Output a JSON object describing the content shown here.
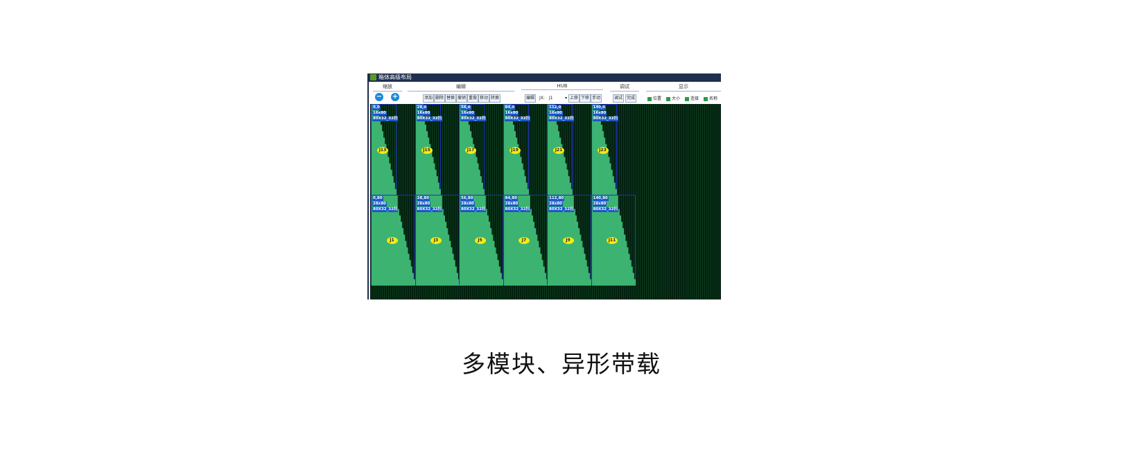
{
  "window": {
    "title": "箱体高级布局"
  },
  "toolbar": {
    "sections": [
      "缩放",
      "编辑",
      "HUB",
      "调试",
      "显示"
    ],
    "edit_buttons": [
      "添加",
      "删除",
      "替换",
      "撤销",
      "重做",
      "移动",
      "转换"
    ],
    "hub": {
      "edit": "编辑",
      "jx_label": "JX:",
      "jx_value": "J1",
      "up": "上移",
      "down": "下移",
      "manual": "手动"
    },
    "debug_buttons": [
      "调试",
      "完成"
    ],
    "display_checks": [
      {
        "label": "位置",
        "checked": true
      },
      {
        "label": "大小",
        "checked": true
      },
      {
        "label": "连接",
        "checked": true
      },
      {
        "label": "名称",
        "checked": true
      }
    ]
  },
  "modules": {
    "top": [
      {
        "pos": "0,0",
        "size": "16x80",
        "type": "80X32_32扫",
        "id": "J13"
      },
      {
        "pos": "28,0",
        "size": "16x80",
        "type": "80X32_32扫",
        "id": "J15"
      },
      {
        "pos": "56,0",
        "size": "16x80",
        "type": "80X32_32扫",
        "id": "J17"
      },
      {
        "pos": "84,0",
        "size": "16x80",
        "type": "80X32_32扫",
        "id": "J19"
      },
      {
        "pos": "112,0",
        "size": "16x80",
        "type": "80X32_32扫",
        "id": "J21"
      },
      {
        "pos": "140,0",
        "size": "16x80",
        "type": "80X32_32扫",
        "id": "J23"
      }
    ],
    "bottom": [
      {
        "pos": "0,80",
        "size": "28x80",
        "type": "80X32_32扫",
        "id": "J1"
      },
      {
        "pos": "28,80",
        "size": "28x80",
        "type": "80X32_32扫",
        "id": "J3"
      },
      {
        "pos": "56,80",
        "size": "28x80",
        "type": "80X32_32扫",
        "id": "J5"
      },
      {
        "pos": "84,80",
        "size": "28x80",
        "type": "80X32_32扫",
        "id": "J7"
      },
      {
        "pos": "112,80",
        "size": "28x80",
        "type": "80X32_32扫",
        "id": "J9"
      },
      {
        "pos": "140,80",
        "size": "28x80",
        "type": "80X32_32扫",
        "id": "J11"
      }
    ]
  },
  "colors": {
    "module_fill": "#3cb371",
    "canvas": "#02200f",
    "label": "#1858c8",
    "id_badge": "#f4ec10"
  },
  "caption": "多模块、异形带载"
}
